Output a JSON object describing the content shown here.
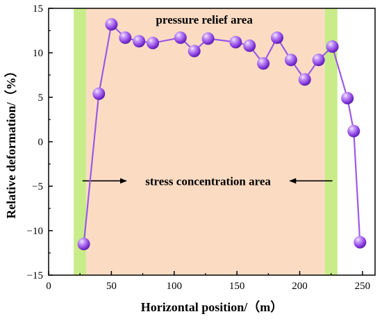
{
  "chart_data": {
    "type": "line",
    "xlabel": "Horizontal position/（m）",
    "ylabel": "Relative deformation/（%）",
    "xlim": [
      0,
      260
    ],
    "ylim": [
      -15,
      15
    ],
    "xticks": [
      0,
      50,
      100,
      150,
      200,
      250
    ],
    "yticks": [
      -15,
      -10,
      -5,
      0,
      5,
      10,
      15
    ],
    "grid": false,
    "legend": "none",
    "series": [
      {
        "x": [
          28,
          40,
          50,
          61,
          72,
          83,
          105,
          116,
          127,
          149,
          160,
          171,
          182,
          193,
          204,
          215,
          226,
          238,
          243,
          248
        ],
        "values": [
          -11.5,
          5.4,
          13.2,
          11.7,
          11.3,
          11.1,
          11.7,
          10.2,
          11.6,
          11.2,
          10.8,
          8.8,
          11.7,
          9.2,
          7.0,
          9.2,
          10.7,
          4.9,
          1.2,
          -11.3
        ]
      }
    ],
    "regions": [
      {
        "x_from": 20,
        "x_to": 30,
        "kind": "stress"
      },
      {
        "x_from": 30,
        "x_to": 220,
        "kind": "relief"
      },
      {
        "x_from": 220,
        "x_to": 230,
        "kind": "stress"
      }
    ],
    "annotations": {
      "relief_label": "pressure relief area",
      "stress_label": "stress concentration area",
      "stress_arrow": {
        "x_from": 27,
        "x_to": 226,
        "y": -4.4
      }
    },
    "colors": {
      "relief_fill": "#fbdcc3",
      "stress_fill": "#c9ec8a",
      "line": "#9b59e6",
      "marker": "#9a4fe8",
      "marker_highlight": "#f0e0ff"
    }
  }
}
